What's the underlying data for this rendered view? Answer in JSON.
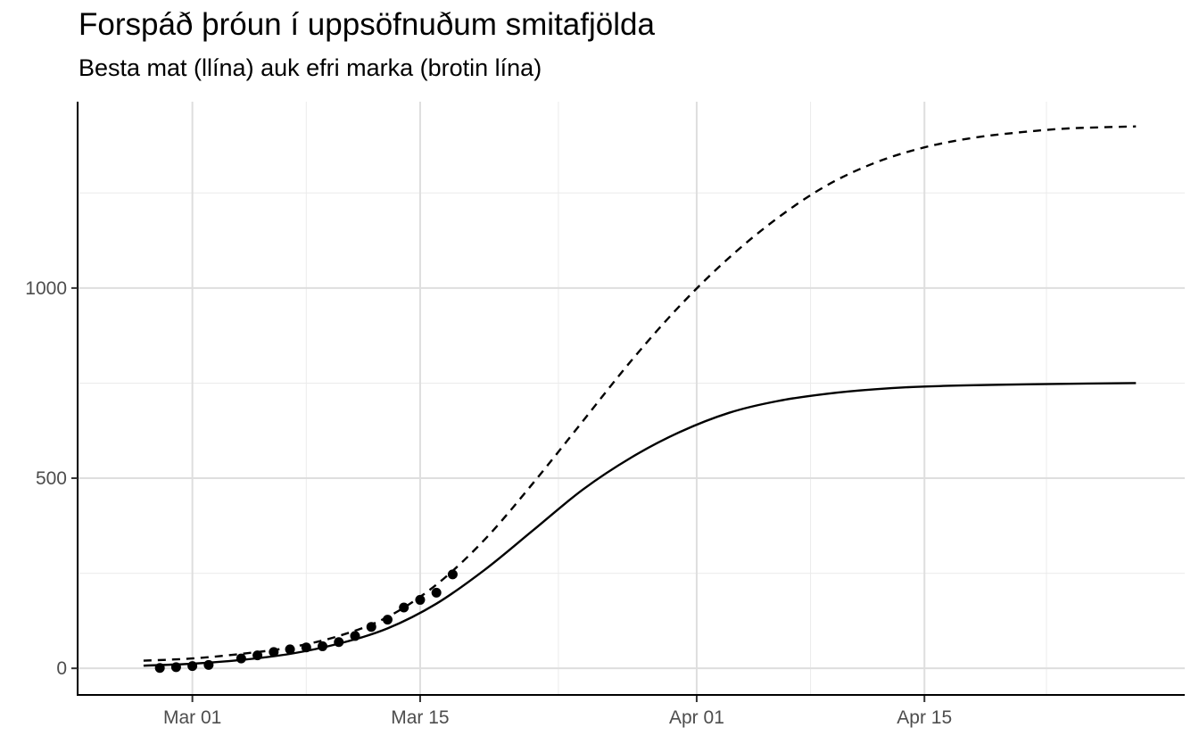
{
  "chart_data": {
    "type": "line",
    "title": "Forspáð þróun í uppsöfnuðum smitafjölda",
    "subtitle": "Besta mat (llína) auk efri marka (brotin lína)",
    "xlabel": "",
    "ylabel": "",
    "x_ticks": [
      "Mar 01",
      "Mar 15",
      "Apr 01",
      "Apr 15"
    ],
    "x_tick_dates": [
      "2020-03-01",
      "2020-03-15",
      "2020-04-01",
      "2020-04-15"
    ],
    "y_ticks": [
      0,
      500,
      1000
    ],
    "xlim": [
      "2020-02-23",
      "2020-05-01"
    ],
    "ylim": [
      -70,
      1490
    ],
    "grid": true,
    "series": [
      {
        "style": "solid",
        "color": "#000000",
        "x": [
          "2020-02-27",
          "2020-03-01",
          "2020-03-04",
          "2020-03-07",
          "2020-03-10",
          "2020-03-13",
          "2020-03-16",
          "2020-03-19",
          "2020-03-22",
          "2020-03-25",
          "2020-03-28",
          "2020-03-31",
          "2020-04-03",
          "2020-04-06",
          "2020-04-09",
          "2020-04-12",
          "2020-04-15",
          "2020-04-20",
          "2020-04-25",
          "2020-04-28"
        ],
        "values": [
          7,
          12,
          22,
          38,
          65,
          105,
          170,
          260,
          365,
          470,
          555,
          622,
          672,
          703,
          722,
          734,
          741,
          746,
          749,
          750
        ]
      },
      {
        "style": "dashed",
        "color": "#000000",
        "x": [
          "2020-02-27",
          "2020-03-01",
          "2020-03-04",
          "2020-03-07",
          "2020-03-10",
          "2020-03-13",
          "2020-03-16",
          "2020-03-19",
          "2020-03-22",
          "2020-03-25",
          "2020-03-28",
          "2020-03-31",
          "2020-04-03",
          "2020-04-06",
          "2020-04-09",
          "2020-04-12",
          "2020-04-15",
          "2020-04-18",
          "2020-04-21",
          "2020-04-24",
          "2020-04-28"
        ],
        "values": [
          20,
          26,
          38,
          55,
          85,
          135,
          220,
          340,
          490,
          650,
          810,
          955,
          1080,
          1185,
          1270,
          1330,
          1370,
          1395,
          1410,
          1420,
          1425
        ]
      },
      {
        "style": "points",
        "color": "#000000",
        "x": [
          "2020-02-28",
          "2020-02-29",
          "2020-03-01",
          "2020-03-02",
          "2020-03-04",
          "2020-03-05",
          "2020-03-06",
          "2020-03-07",
          "2020-03-08",
          "2020-03-09",
          "2020-03-10",
          "2020-03-11",
          "2020-03-12",
          "2020-03-13",
          "2020-03-14",
          "2020-03-15",
          "2020-03-16",
          "2020-03-17"
        ],
        "values": [
          1,
          3,
          6,
          9,
          26,
          34,
          43,
          50,
          55,
          58,
          69,
          85,
          109,
          128,
          160,
          180,
          199,
          247
        ]
      }
    ]
  }
}
